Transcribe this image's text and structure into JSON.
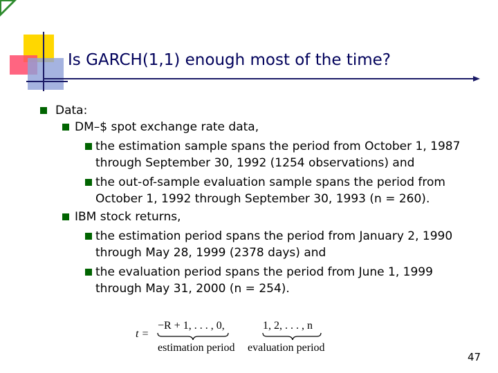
{
  "title": "Is GARCH(1,1) enough most of the time?",
  "content": {
    "heading": "Data:",
    "dm": {
      "label": "DM–$ spot exchange rate data,",
      "estimation": "the estimation sample spans the period from October 1, 1987 through September 30, 1992 (1254 observations) and",
      "evaluation": "the out-of-sample evaluation sample spans the period from October 1, 1992 through September 30, 1993 (n = 260)."
    },
    "ibm": {
      "label": "IBM stock returns,",
      "estimation": "the estimation period spans the period from January 2, 1990 through May 28, 1999 (2378 days) and",
      "evaluation": "the evaluation period spans the period from June 1, 1999 through May 31, 2000 (n = 254)."
    }
  },
  "formula": {
    "lhs": "t =",
    "estimation_range": "−R + 1, . . . , 0,",
    "evaluation_range": "1, 2, . . . , n",
    "estimation_label": "estimation period",
    "evaluation_label": "evaluation period"
  },
  "page_number": "47",
  "colors": {
    "title": "#00005a",
    "bullet": "#006400",
    "accent_line": "#1a1a66",
    "deco_yellow": "#ffd700",
    "deco_red": "#ff4a6b",
    "deco_blue": "#8fa0d8"
  }
}
